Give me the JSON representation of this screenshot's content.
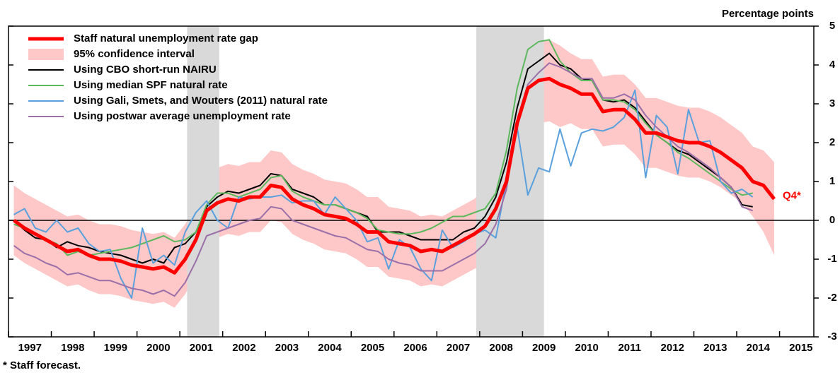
{
  "chart_data": {
    "type": "line",
    "y_label": "Percentage points",
    "footnote": "* Staff forecast.",
    "annotation": {
      "text": "Q4*",
      "color": "#ff0000"
    },
    "xlim": [
      1997,
      2015.8
    ],
    "xticks": [
      1997,
      1998,
      1999,
      2000,
      2001,
      2002,
      2003,
      2004,
      2005,
      2006,
      2007,
      2008,
      2009,
      2010,
      2011,
      2012,
      2013,
      2014,
      2015
    ],
    "ylim": [
      -3,
      5
    ],
    "yticks": [
      -3,
      -2,
      -1,
      0,
      1,
      2,
      3,
      4,
      5
    ],
    "shaded": [
      [
        2001.17,
        2001.92
      ],
      [
        2007.92,
        2009.5
      ]
    ],
    "x": [
      1997.125,
      1997.375,
      1997.625,
      1997.875,
      1998.125,
      1998.375,
      1998.625,
      1998.875,
      1999.125,
      1999.375,
      1999.625,
      1999.875,
      2000.125,
      2000.375,
      2000.625,
      2000.875,
      2001.125,
      2001.375,
      2001.625,
      2001.875,
      2002.125,
      2002.375,
      2002.625,
      2002.875,
      2003.125,
      2003.375,
      2003.625,
      2003.875,
      2004.125,
      2004.375,
      2004.625,
      2004.875,
      2005.125,
      2005.375,
      2005.625,
      2005.875,
      2006.125,
      2006.375,
      2006.625,
      2006.875,
      2007.125,
      2007.375,
      2007.625,
      2007.875,
      2008.125,
      2008.375,
      2008.625,
      2008.875,
      2009.125,
      2009.375,
      2009.625,
      2009.875,
      2010.125,
      2010.375,
      2010.625,
      2010.875,
      2011.125,
      2011.375,
      2011.625,
      2011.875,
      2012.125,
      2012.375,
      2012.625,
      2012.875,
      2013.125,
      2013.375,
      2013.625,
      2013.875,
      2014.125,
      2014.375,
      2014.625,
      2014.875
    ],
    "band": {
      "name": "95% confidence interval",
      "color": "#ffc8c8",
      "upper": [
        0.9,
        0.7,
        0.55,
        0.4,
        0.25,
        0.1,
        0.15,
        0,
        -0.1,
        -0.1,
        -0.15,
        -0.25,
        -0.3,
        -0.35,
        -0.3,
        -0.45,
        -0.1,
        0.4,
        1.15,
        1.35,
        1.45,
        1.4,
        1.5,
        1.5,
        1.8,
        1.75,
        1.45,
        1.3,
        1.2,
        1.05,
        1.0,
        0.95,
        0.8,
        0.6,
        0.6,
        0.35,
        0.3,
        0.25,
        0.1,
        0.15,
        0.1,
        0.25,
        0.4,
        0.55,
        0.85,
        1.3,
        2.0,
        3.5,
        4.4,
        4.6,
        4.65,
        4.5,
        4.3,
        4.15,
        4.15,
        3.7,
        3.75,
        3.75,
        3.5,
        3.15,
        3.15,
        3.05,
        2.95,
        2.9,
        2.9,
        2.8,
        2.65,
        2.45,
        2.25,
        1.9,
        1.8,
        1.5
      ],
      "lower": [
        -0.9,
        -1.1,
        -1.25,
        -1.4,
        -1.55,
        -1.7,
        -1.65,
        -1.8,
        -1.9,
        -1.9,
        -1.95,
        -2.05,
        -2.1,
        -2.15,
        -2.1,
        -2.25,
        -1.9,
        -1.4,
        -0.65,
        -0.45,
        -0.35,
        -0.4,
        -0.3,
        -0.3,
        0,
        -0.05,
        -0.35,
        -0.5,
        -0.6,
        -0.75,
        -0.8,
        -0.85,
        -1.0,
        -1.2,
        -1.2,
        -1.45,
        -1.5,
        -1.55,
        -1.7,
        -1.65,
        -1.7,
        -1.55,
        -1.4,
        -1.25,
        -1.15,
        -0.7,
        0,
        1.4,
        2.3,
        2.5,
        2.55,
        2.4,
        2.5,
        2.35,
        2.35,
        1.9,
        1.95,
        1.95,
        1.7,
        1.35,
        1.35,
        1.25,
        1.15,
        1.1,
        1.1,
        1.0,
        0.85,
        0.65,
        0.45,
        0.1,
        -0.3,
        -0.9
      ]
    },
    "series": [
      {
        "name": "Staff natural unemployment rate gap",
        "color": "#ff0000",
        "width": 5,
        "values": [
          0,
          -0.2,
          -0.35,
          -0.5,
          -0.65,
          -0.8,
          -0.75,
          -0.9,
          -1.0,
          -1.0,
          -1.05,
          -1.15,
          -1.2,
          -1.25,
          -1.2,
          -1.35,
          -1.0,
          -0.5,
          0.25,
          0.45,
          0.55,
          0.5,
          0.6,
          0.6,
          0.9,
          0.85,
          0.55,
          0.4,
          0.3,
          0.15,
          0.1,
          0.05,
          -0.1,
          -0.3,
          -0.3,
          -0.55,
          -0.6,
          -0.65,
          -0.8,
          -0.75,
          -0.8,
          -0.65,
          -0.5,
          -0.35,
          -0.15,
          0.3,
          1.0,
          2.5,
          3.4,
          3.6,
          3.65,
          3.5,
          3.4,
          3.25,
          3.25,
          2.8,
          2.85,
          2.85,
          2.6,
          2.25,
          2.25,
          2.15,
          2.05,
          2.0,
          2.0,
          1.9,
          1.75,
          1.55,
          1.35,
          1.0,
          0.9,
          0.55
        ]
      },
      {
        "name": "Using CBO short-run NAIRU",
        "color": "#000000",
        "width": 2,
        "values": [
          0,
          -0.25,
          -0.45,
          -0.5,
          -0.7,
          -0.55,
          -0.65,
          -0.7,
          -0.8,
          -0.85,
          -0.9,
          -1.0,
          -1.1,
          -1.0,
          -1.1,
          -0.7,
          -0.6,
          -0.3,
          0.35,
          0.6,
          0.75,
          0.7,
          0.8,
          0.9,
          1.2,
          1.15,
          0.8,
          0.7,
          0.6,
          0.4,
          0.4,
          0.3,
          0.2,
          0.1,
          -0.3,
          -0.3,
          -0.3,
          -0.4,
          -0.5,
          -0.5,
          -0.5,
          -0.5,
          -0.3,
          -0.2,
          0.1,
          0.6,
          1.5,
          2.9,
          3.9,
          4.1,
          4.3,
          4.0,
          3.9,
          3.65,
          3.6,
          3.1,
          3.05,
          3.1,
          2.9,
          2.55,
          2.2,
          2.0,
          1.8,
          1.7,
          1.5,
          1.3,
          1.1,
          0.85,
          0.4,
          0.35,
          null,
          null
        ]
      },
      {
        "name": "Using median SPF natural rate",
        "color": "#5cb85c",
        "width": 2,
        "values": [
          -0.1,
          -0.2,
          -0.35,
          -0.5,
          -0.6,
          -0.9,
          -0.8,
          -0.9,
          -0.85,
          -0.8,
          -0.75,
          -0.7,
          -0.6,
          -0.5,
          -0.4,
          -0.55,
          -0.5,
          -0.3,
          0.4,
          0.7,
          0.7,
          0.6,
          0.7,
          0.8,
          1.1,
          1.15,
          0.75,
          0.6,
          0.5,
          0.4,
          0.4,
          0.3,
          0.2,
          0.05,
          -0.25,
          -0.3,
          -0.35,
          -0.35,
          -0.3,
          -0.2,
          -0.05,
          0.1,
          0.1,
          0.2,
          0.3,
          0.7,
          1.8,
          3.4,
          4.4,
          4.6,
          4.65,
          4.1,
          3.8,
          3.6,
          3.6,
          3.1,
          3.1,
          3.05,
          2.85,
          2.5,
          2.2,
          2.0,
          1.75,
          1.6,
          1.4,
          1.2,
          1.0,
          0.8,
          0.65,
          0.7,
          null,
          null
        ]
      },
      {
        "name": "Using Gali, Smets, and Wouters (2011) natural rate",
        "color": "#5aa0dc",
        "width": 2,
        "values": [
          0.15,
          0.3,
          -0.2,
          -0.3,
          0,
          -0.3,
          -0.2,
          -0.6,
          -0.8,
          -0.75,
          -1.5,
          -2.0,
          -0.2,
          -1.1,
          -0.9,
          -1.15,
          -0.3,
          0.2,
          0.5,
          0,
          -0.2,
          0.6,
          0.55,
          0.6,
          0.6,
          0.65,
          0.45,
          0.5,
          0.5,
          0.15,
          0.6,
          0.3,
          0,
          -0.55,
          -0.45,
          -1.25,
          -0.5,
          -0.7,
          -1.25,
          -1.55,
          -0.25,
          -0.7,
          -0.55,
          -0.35,
          -0.25,
          -0.45,
          1.0,
          2.4,
          0.65,
          1.35,
          1.25,
          2.35,
          1.4,
          2.25,
          2.35,
          2.3,
          2.4,
          2.65,
          3.35,
          1.1,
          2.7,
          2.4,
          1.2,
          2.85,
          2.0,
          2.05,
          1.0,
          0.7,
          0.8,
          0.6,
          null,
          null
        ]
      },
      {
        "name": "Using postwar average unemployment rate",
        "color": "#9b6fa8",
        "width": 2,
        "values": [
          -0.65,
          -0.85,
          -0.95,
          -1.1,
          -1.2,
          -1.4,
          -1.35,
          -1.45,
          -1.55,
          -1.55,
          -1.65,
          -1.75,
          -1.8,
          -1.9,
          -1.8,
          -1.95,
          -1.6,
          -1.05,
          -0.4,
          -0.3,
          -0.2,
          -0.1,
          0,
          0.05,
          0.35,
          0.3,
          0,
          -0.1,
          -0.2,
          -0.3,
          -0.4,
          -0.45,
          -0.6,
          -0.75,
          -0.8,
          -1.0,
          -1.1,
          -1.15,
          -1.3,
          -1.3,
          -1.3,
          -1.15,
          -1.0,
          -0.85,
          -0.6,
          -0.1,
          0.8,
          2.6,
          3.5,
          3.8,
          4.05,
          3.95,
          3.8,
          3.65,
          3.65,
          3.15,
          3.15,
          3.25,
          3.1,
          2.7,
          2.4,
          2.15,
          1.9,
          1.75,
          1.55,
          1.35,
          1.1,
          0.85,
          0.35,
          0.25,
          null,
          null
        ]
      }
    ]
  }
}
